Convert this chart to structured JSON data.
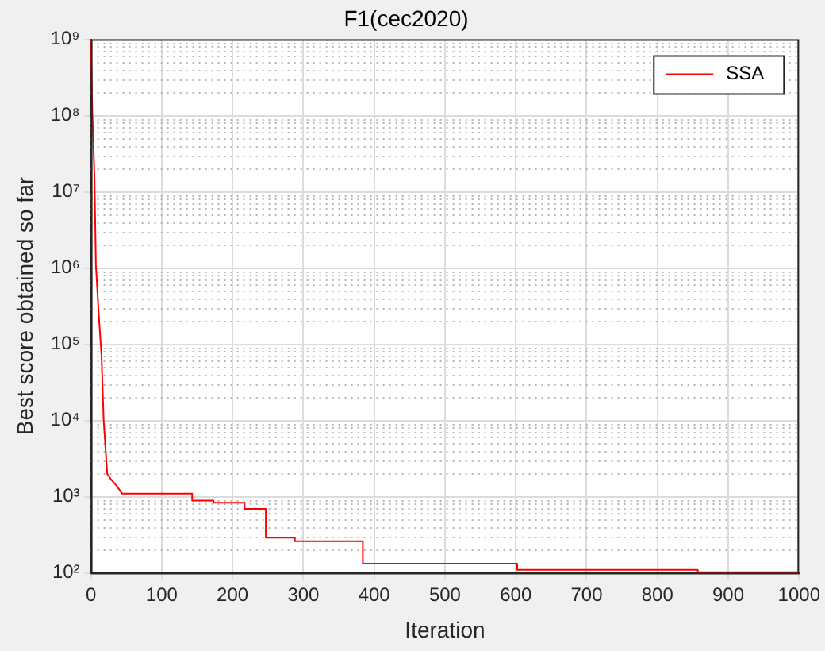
{
  "chart_data": {
    "type": "line",
    "title": "F1(cec2020)",
    "xlabel": "Iteration",
    "ylabel": "Best score obtained so far",
    "log": "y",
    "grid": true,
    "legend": "top right",
    "marker": "none",
    "line_style": "solid",
    "xlim": [
      0,
      1000
    ],
    "xticks": [
      0,
      100,
      200,
      300,
      400,
      500,
      600,
      700,
      800,
      900,
      1000
    ],
    "ylim": [
      100,
      1000000000
    ],
    "yticks": [
      {
        "value": 100,
        "label": "10²"
      },
      {
        "value": 1000,
        "label": "10³"
      },
      {
        "value": 10000,
        "label": "10⁴"
      },
      {
        "value": 100000,
        "label": "10⁵"
      },
      {
        "value": 1000000,
        "label": "10⁶"
      },
      {
        "value": 10000000,
        "label": "10⁷"
      },
      {
        "value": 100000000,
        "label": "10⁸"
      },
      {
        "value": 1000000000,
        "label": "10⁹"
      }
    ],
    "series": [
      {
        "name": "SSA",
        "color": "#ff0000",
        "x": [
          0,
          2,
          5,
          7,
          11,
          15,
          18,
          23,
          28,
          36,
          44,
          143,
          143,
          173,
          173,
          217,
          217,
          247,
          247,
          288,
          288,
          384,
          384,
          602,
          602,
          857,
          857,
          1000
        ],
        "values": [
          1000000000,
          110000000,
          16000000,
          1100000,
          250000,
          70000,
          10000,
          2000,
          1700,
          1400,
          1100,
          1100,
          890,
          890,
          830,
          830,
          690,
          690,
          290,
          290,
          260,
          260,
          132,
          132,
          110,
          110,
          102,
          102
        ]
      }
    ]
  }
}
